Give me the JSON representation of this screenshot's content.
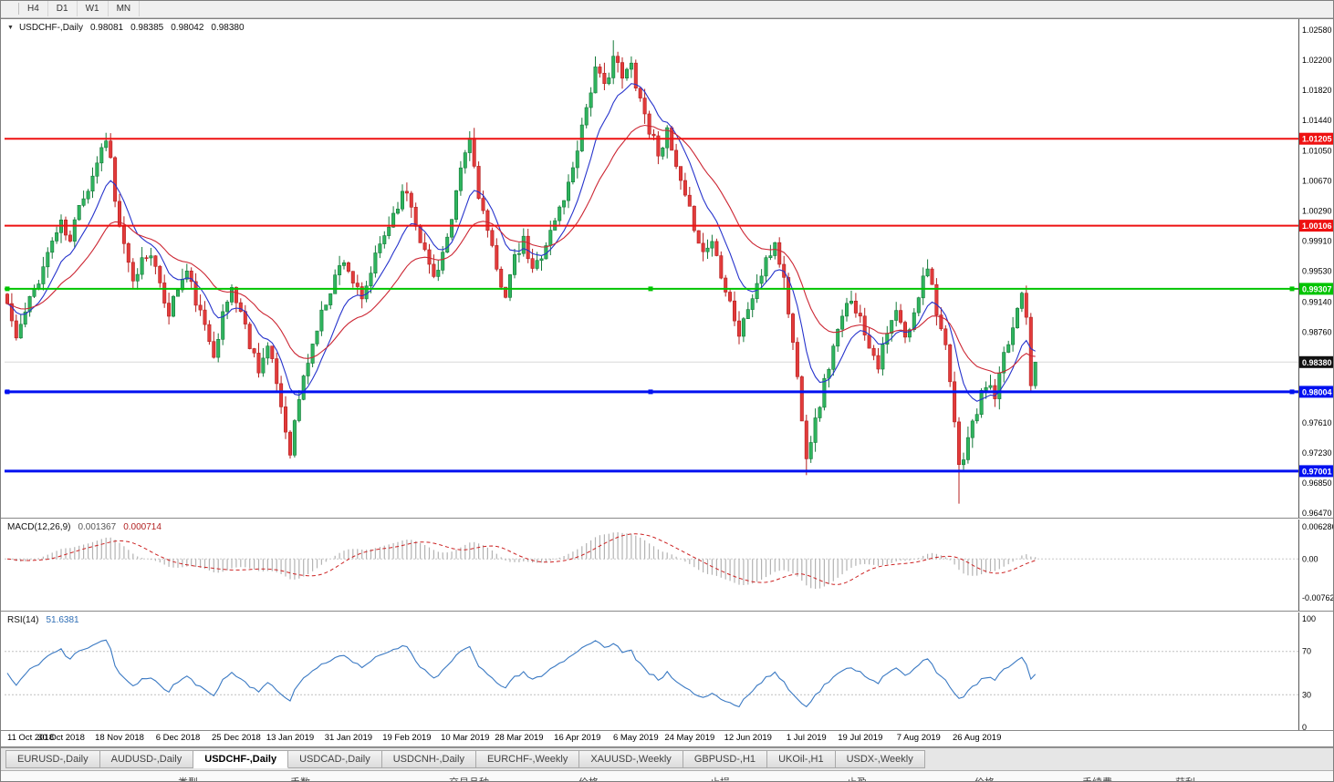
{
  "toolbar": {
    "timeframes": [
      "H4",
      "D1",
      "W1",
      "MN"
    ]
  },
  "chart_header": {
    "collapse_arrow": "▼",
    "symbol_period": "USDCHF-,Daily",
    "open": "0.98081",
    "high": "0.98385",
    "low": "0.98042",
    "close": "0.98380"
  },
  "indicators": {
    "macd": {
      "name": "MACD(12,26,9)",
      "value_main": "0.001367",
      "value_signal": "0.000714",
      "axis_labels": [
        {
          "text": "0.006286",
          "value": 0.006286
        },
        {
          "text": "0.00",
          "value": 0
        },
        {
          "text": "-0.00762",
          "value": -0.00762
        }
      ]
    },
    "rsi": {
      "name": "RSI(14)",
      "value": "51.6381",
      "axis_labels": [
        {
          "text": "100",
          "value": 100
        },
        {
          "text": "70",
          "value": 70
        },
        {
          "text": "30",
          "value": 30
        },
        {
          "text": "0",
          "value": 0
        }
      ],
      "levels": [
        70,
        30
      ]
    }
  },
  "chart_data": {
    "type": "candlestick",
    "symbol": "USDCHF-",
    "period": "Daily",
    "ohlc_current": {
      "open": 0.98081,
      "high": 0.98385,
      "low": 0.98042,
      "close": 0.9838
    },
    "ylim": [
      0.96435,
      1.02718
    ],
    "macd_ylim": [
      -0.00953,
      0.0075
    ],
    "macd_params": [
      12,
      26,
      9
    ],
    "rsi_period": 14,
    "ma_periods": {
      "fast": 10,
      "slow": 25
    },
    "n_candles": 230,
    "close_keypoints": [
      [
        0,
        0.9912
      ],
      [
        2,
        0.9868
      ],
      [
        4,
        0.99
      ],
      [
        6,
        0.993
      ],
      [
        8,
        0.9958
      ],
      [
        10,
        0.9992
      ],
      [
        12,
        1.0012
      ],
      [
        14,
        0.9988
      ],
      [
        16,
        1.0042
      ],
      [
        18,
        1.0058
      ],
      [
        20,
        1.0092
      ],
      [
        22,
        1.0124
      ],
      [
        23,
        1.0095
      ],
      [
        24,
        1.004
      ],
      [
        26,
        0.9982
      ],
      [
        28,
        0.9936
      ],
      [
        30,
        0.9968
      ],
      [
        32,
        0.998
      ],
      [
        34,
        0.993
      ],
      [
        36,
        0.9902
      ],
      [
        38,
        0.9932
      ],
      [
        40,
        0.9952
      ],
      [
        42,
        0.9916
      ],
      [
        44,
        0.988
      ],
      [
        46,
        0.9852
      ],
      [
        48,
        0.9896
      ],
      [
        50,
        0.9932
      ],
      [
        52,
        0.9902
      ],
      [
        54,
        0.9862
      ],
      [
        56,
        0.9832
      ],
      [
        58,
        0.9856
      ],
      [
        60,
        0.9812
      ],
      [
        62,
        0.9752
      ],
      [
        63,
        0.9728
      ],
      [
        65,
        0.9792
      ],
      [
        67,
        0.984
      ],
      [
        69,
        0.988
      ],
      [
        71,
        0.9916
      ],
      [
        73,
        0.9946
      ],
      [
        75,
        0.997
      ],
      [
        77,
        0.994
      ],
      [
        79,
        0.9912
      ],
      [
        81,
        0.9952
      ],
      [
        83,
        0.9986
      ],
      [
        85,
        1.0012
      ],
      [
        87,
        1.004
      ],
      [
        89,
        1.0055
      ],
      [
        91,
        1.0016
      ],
      [
        93,
        0.9976
      ],
      [
        95,
        0.9946
      ],
      [
        97,
        0.9976
      ],
      [
        99,
        1.0012
      ],
      [
        101,
        1.0082
      ],
      [
        103,
        1.012
      ],
      [
        105,
        1.0052
      ],
      [
        107,
        1.0002
      ],
      [
        109,
        0.9952
      ],
      [
        111,
        0.9926
      ],
      [
        113,
        0.9966
      ],
      [
        115,
        0.999
      ],
      [
        117,
        0.9952
      ],
      [
        119,
        0.9976
      ],
      [
        121,
        1.0002
      ],
      [
        123,
        1.0032
      ],
      [
        125,
        1.0062
      ],
      [
        127,
        1.0112
      ],
      [
        129,
        1.0162
      ],
      [
        131,
        1.0206
      ],
      [
        133,
        1.0186
      ],
      [
        135,
        1.0226
      ],
      [
        137,
        1.0196
      ],
      [
        139,
        1.0214
      ],
      [
        141,
        1.0172
      ],
      [
        143,
        1.0132
      ],
      [
        145,
        1.0106
      ],
      [
        147,
        1.0126
      ],
      [
        149,
        1.0082
      ],
      [
        151,
        1.0042
      ],
      [
        153,
        1.0012
      ],
      [
        155,
        0.9976
      ],
      [
        157,
        0.9992
      ],
      [
        159,
        0.9952
      ],
      [
        161,
        0.9916
      ],
      [
        163,
        0.9872
      ],
      [
        165,
        0.9906
      ],
      [
        167,
        0.9936
      ],
      [
        169,
        0.9962
      ],
      [
        171,
        0.999
      ],
      [
        173,
        0.9942
      ],
      [
        175,
        0.9862
      ],
      [
        177,
        0.9772
      ],
      [
        178,
        0.9722
      ],
      [
        180,
        0.9762
      ],
      [
        182,
        0.9812
      ],
      [
        184,
        0.9856
      ],
      [
        186,
        0.9892
      ],
      [
        188,
        0.9922
      ],
      [
        190,
        0.9892
      ],
      [
        192,
        0.9862
      ],
      [
        194,
        0.9836
      ],
      [
        196,
        0.9872
      ],
      [
        198,
        0.9902
      ],
      [
        200,
        0.9866
      ],
      [
        202,
        0.9896
      ],
      [
        204,
        0.9952
      ],
      [
        205,
        0.9962
      ],
      [
        207,
        0.9906
      ],
      [
        209,
        0.9852
      ],
      [
        211,
        0.9762
      ],
      [
        212,
        0.9702
      ],
      [
        214,
        0.9742
      ],
      [
        216,
        0.9776
      ],
      [
        218,
        0.9812
      ],
      [
        220,
        0.9792
      ],
      [
        222,
        0.9842
      ],
      [
        224,
        0.9882
      ],
      [
        226,
        0.9932
      ],
      [
        227,
        0.99
      ],
      [
        228,
        0.98081
      ],
      [
        229,
        0.9838
      ]
    ],
    "forced_extremes": {
      "highs": {
        "22": 1.0128,
        "135": 1.0245,
        "205": 0.9968,
        "229": 0.98385
      },
      "lows": {
        "63": 0.9716,
        "178": 0.9695,
        "212": 0.9659,
        "229": 0.98042
      }
    },
    "price_axis_ticks": [
      "1.02580",
      "1.02200",
      "1.01820",
      "1.01440",
      "1.01050",
      "1.00670",
      "1.00290",
      "0.99910",
      "0.99530",
      "0.99140",
      "0.98760",
      "0.97610",
      "0.97230",
      "0.96850",
      "0.96470"
    ],
    "hlines": [
      {
        "price": 1.01205,
        "label": "1.01205",
        "color": "#ee1111",
        "width": 2,
        "handles": false
      },
      {
        "price": 1.00106,
        "label": "1.00106",
        "color": "#ee1111",
        "width": 2,
        "handles": false
      },
      {
        "price": 0.99307,
        "label": "0.99307",
        "color": "#00c400",
        "width": 2,
        "handles": true
      },
      {
        "price": 0.98004,
        "label": "0.98004",
        "color": "#0010f0",
        "width": 3,
        "handles": true
      },
      {
        "price": 0.97001,
        "label": "0.97001",
        "color": "#0010f0",
        "width": 3,
        "handles": false
      }
    ],
    "last_price": {
      "value": 0.9838,
      "label": "0.98380",
      "tag_color": "#111111"
    },
    "date_ticks": [
      {
        "i": 0,
        "label": "11 Oct 2018"
      },
      {
        "i": 12,
        "label": "30 Oct 2018"
      },
      {
        "i": 25,
        "label": "18 Nov 2018"
      },
      {
        "i": 38,
        "label": "6 Dec 2018"
      },
      {
        "i": 51,
        "label": "25 Dec 2018"
      },
      {
        "i": 63,
        "label": "13 Jan 2019"
      },
      {
        "i": 76,
        "label": "31 Jan 2019"
      },
      {
        "i": 89,
        "label": "19 Feb 2019"
      },
      {
        "i": 102,
        "label": "10 Mar 2019"
      },
      {
        "i": 114,
        "label": "28 Mar 2019"
      },
      {
        "i": 127,
        "label": "16 Apr 2019"
      },
      {
        "i": 140,
        "label": "6 May 2019"
      },
      {
        "i": 152,
        "label": "24 May 2019"
      },
      {
        "i": 165,
        "label": "12 Jun 2019"
      },
      {
        "i": 178,
        "label": "1 Jul 2019"
      },
      {
        "i": 190,
        "label": "19 Jul 2019"
      },
      {
        "i": 203,
        "label": "7 Aug 2019"
      },
      {
        "i": 216,
        "label": "26 Aug 2019"
      }
    ],
    "colors": {
      "up_fill": "#2fb45e",
      "up_stroke": "#157a3a",
      "down_fill": "#e23b3b",
      "down_stroke": "#b51f1f",
      "ma_fast": "#2633cc",
      "ma_slow": "#cc2633",
      "macd_hist": "#b3b3b3",
      "macd_signal": "#cc2222",
      "rsi_line": "#3a79c3",
      "last_price_line": "#d8d8d8"
    }
  },
  "tabs": {
    "active_index": 2,
    "items": [
      "EURUSD-,Daily",
      "AUDUSD-,Daily",
      "USDCHF-,Daily",
      "USDCAD-,Daily",
      "USDCNH-,Daily",
      "EURCHF-,Weekly",
      "XAUUSD-,Weekly",
      "GBPUSD-,H1",
      "UKOil-,H1",
      "USDX-,Weekly"
    ]
  },
  "status_bar": {
    "columns": [
      "类型",
      "手数",
      "交易品种",
      "价格",
      "止损",
      "止盈",
      "价格",
      "手续费",
      "获利"
    ]
  }
}
